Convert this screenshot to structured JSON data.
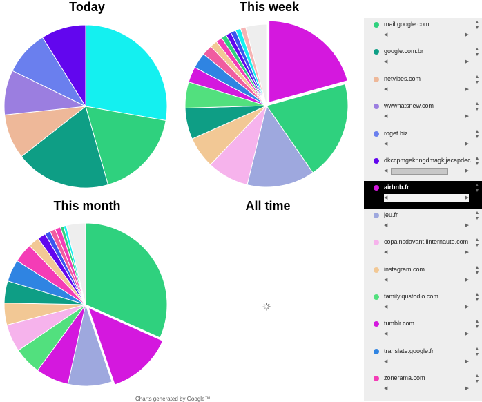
{
  "chart_data": [
    {
      "type": "pie",
      "title": "Today",
      "series": [
        {
          "values": [
            25,
            16,
            17,
            8,
            8,
            8,
            8
          ],
          "colors": [
            "#14f0f0",
            "#2fd17e",
            "#0e9e85",
            "#eeb899",
            "#9b7ee0",
            "#6a7fee",
            "#6206ee"
          ]
        }
      ],
      "exploded": []
    },
    {
      "type": "pie",
      "title": "This week",
      "series": [
        {
          "values": [
            20,
            19,
            13,
            8,
            6,
            6,
            5,
            3,
            3,
            2,
            1.4,
            1.2,
            1,
            1,
            1,
            1,
            1,
            4
          ],
          "colors": [
            "#d418de",
            "#2fd17e",
            "#9ea8de",
            "#f6b3ec",
            "#f2c895",
            "#0e9e85",
            "#52e07e",
            "#d418de",
            "#2f84e2",
            "#f05da0",
            "#f2c895",
            "#f43cb6",
            "#2fd17e",
            "#6206ee",
            "#3a55ee",
            "#14f0f0",
            "#f6b3b3",
            "#eeeeee"
          ]
        }
      ],
      "exploded": [
        0
      ]
    },
    {
      "type": "pie",
      "title": "This month",
      "series": [
        {
          "values": [
            29,
            12,
            8,
            6,
            5,
            5,
            4,
            4,
            4,
            3.5,
            2,
            1.5,
            1,
            1,
            1,
            0.6,
            0.5,
            3.5
          ],
          "colors": [
            "#2fd17e",
            "#d418de",
            "#9ea8de",
            "#d418de",
            "#52e07e",
            "#f6b3ec",
            "#f2c895",
            "#0e9e85",
            "#2f84e2",
            "#f43cb6",
            "#f2c895",
            "#6206ee",
            "#3a55ee",
            "#f05da0",
            "#f43cb6",
            "#2fd17e",
            "#14f0f0",
            "#eeeeee"
          ]
        }
      ],
      "exploded": [
        1
      ]
    },
    {
      "type": "pie",
      "title": "All time",
      "series": [],
      "loading": true
    }
  ],
  "legend": {
    "items": [
      {
        "label": "mail.google.com",
        "color": "#2fd17e"
      },
      {
        "label": "google.com.br",
        "color": "#0e9e85"
      },
      {
        "label": "netvibes.com",
        "color": "#eeb899"
      },
      {
        "label": "wwwhatsnew.com",
        "color": "#9b7ee0"
      },
      {
        "label": "roget.biz",
        "color": "#6a7fee"
      },
      {
        "label": "dkccpmgeknngdmagkjjacapdec",
        "color": "#6206ee",
        "scrollbar": true
      },
      {
        "label": "airbnb.fr",
        "color": "#d418de",
        "selected": true
      },
      {
        "label": "jeu.fr",
        "color": "#9ea8de"
      },
      {
        "label": "copainsdavant.linternaute.com",
        "color": "#f6b3ec"
      },
      {
        "label": "instagram.com",
        "color": "#f2c895"
      },
      {
        "label": "family.qustodio.com",
        "color": "#52e07e"
      },
      {
        "label": "tumblr.com",
        "color": "#d418de"
      },
      {
        "label": "translate.google.fr",
        "color": "#2f84e2"
      },
      {
        "label": "zonerama.com",
        "color": "#f43cb6"
      }
    ]
  },
  "footer": {
    "text": "Charts generated by Google™"
  }
}
